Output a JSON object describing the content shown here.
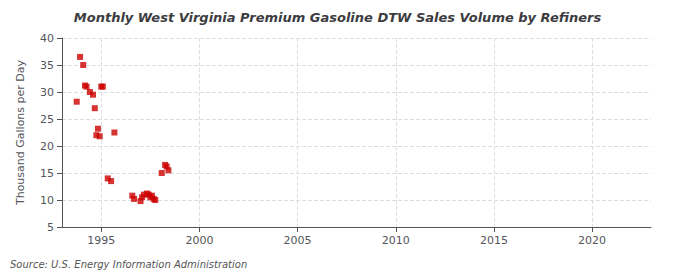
{
  "chart_data": {
    "type": "scatter",
    "title": "Monthly West Virginia Premium Gasoline DTW Sales Volume by Refiners",
    "y_label": "Thousand Gallons per Day",
    "source": "Source: U.S. Energy Information Administration",
    "color": "#cc0000",
    "marker": "square",
    "grid": true,
    "xlim": [
      1993.0,
      2023.0
    ],
    "ylim": [
      5,
      40
    ],
    "xticks": [
      1995,
      2000,
      2005,
      2010,
      2015,
      2020
    ],
    "yticks": [
      5,
      10,
      15,
      20,
      25,
      30,
      35,
      40
    ],
    "x": [
      1993.75,
      1993.92,
      1994.08,
      1994.17,
      1994.25,
      1994.42,
      1994.58,
      1994.67,
      1994.75,
      1994.83,
      1994.92,
      1995.0,
      1995.08,
      1995.33,
      1995.5,
      1995.67,
      1996.58,
      1996.67,
      1997.0,
      1997.08,
      1997.17,
      1997.33,
      1997.42,
      1997.5,
      1997.58,
      1997.67,
      1997.75,
      1998.08,
      1998.25,
      1998.33,
      1998.42
    ],
    "values": [
      28.2,
      36.5,
      35.0,
      31.2,
      31.0,
      30.0,
      29.5,
      27.0,
      22.0,
      23.2,
      21.8,
      31.0,
      31.0,
      14.0,
      13.5,
      22.5,
      10.8,
      10.2,
      9.8,
      10.5,
      11.0,
      11.2,
      11.0,
      10.5,
      10.8,
      10.2,
      10.0,
      15.0,
      16.5,
      16.2,
      15.5
    ]
  }
}
